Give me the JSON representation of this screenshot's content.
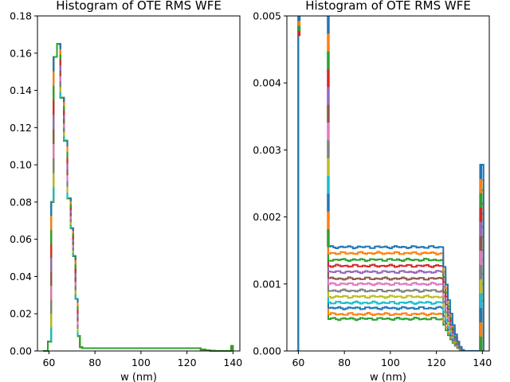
{
  "palette": [
    "#1f77b4",
    "#ff7f0e",
    "#2ca02c",
    "#d62728",
    "#9467bd",
    "#8c564b",
    "#e377c2",
    "#7f7f7f",
    "#bcbd22",
    "#17becf"
  ],
  "chart_data": [
    {
      "type": "histogram-step",
      "title": "Histogram of OTE RMS WFE",
      "xlabel": "w (nm)",
      "ylabel": "",
      "xlim": [
        55,
        143
      ],
      "ylim": [
        0,
        0.18
      ],
      "xticks": [
        "60",
        "80",
        "100",
        "120",
        "140"
      ],
      "yticks": [
        "0.00",
        "0.02",
        "0.04",
        "0.06",
        "0.08",
        "0.10",
        "0.12",
        "0.14",
        "0.16",
        "0.18"
      ],
      "xtick_values": [
        60,
        80,
        100,
        120,
        140
      ],
      "ytick_values": [
        0,
        0.02,
        0.04,
        0.06,
        0.08,
        0.1,
        0.12,
        0.14,
        0.16,
        0.18
      ],
      "grid": false,
      "legend": "none",
      "series_count": 13,
      "bin_width": 0.8,
      "bins": [
        [
          57.5,
          0
        ],
        [
          59.5,
          0.005
        ],
        [
          61.0,
          0.08
        ],
        [
          62.0,
          0.158
        ],
        [
          63.5,
          0.165
        ],
        [
          65.0,
          0.136
        ],
        [
          66.5,
          0.113
        ],
        [
          68.0,
          0.082
        ],
        [
          69.5,
          0.066
        ],
        [
          70.5,
          0.051
        ],
        [
          71.5,
          0.028
        ],
        [
          72.5,
          0.008
        ],
        [
          73.5,
          0.002
        ],
        [
          74.5,
          0.0015
        ],
        [
          124,
          0.0015
        ],
        [
          126,
          0.0008
        ],
        [
          128,
          0.0003
        ],
        [
          130,
          0.0001
        ],
        [
          132,
          0
        ],
        [
          139.2,
          0.0027
        ],
        [
          140.0,
          0
        ]
      ]
    },
    {
      "type": "histogram-step",
      "title": "Histogram of OTE RMS WFE",
      "xlabel": "w (nm)",
      "ylabel": "",
      "xlim": [
        55,
        143
      ],
      "ylim": [
        0,
        0.005
      ],
      "xticks": [
        "60",
        "80",
        "100",
        "120",
        "140"
      ],
      "yticks": [
        "0.000",
        "0.001",
        "0.002",
        "0.003",
        "0.004",
        "0.005"
      ],
      "xtick_values": [
        60,
        80,
        100,
        120,
        140
      ],
      "ytick_values": [
        0,
        0.001,
        0.002,
        0.003,
        0.004,
        0.005
      ],
      "grid": false,
      "legend": "none",
      "series": [
        {
          "plateau": 0.00155,
          "last_bin": 0.00278
        },
        {
          "plateau": 0.00146,
          "last_bin": 0.00255
        },
        {
          "plateau": 0.00136,
          "last_bin": 0.0024
        },
        {
          "plateau": 0.00127,
          "last_bin": 0.0022
        },
        {
          "plateau": 0.00118,
          "last_bin": 0.00205
        },
        {
          "plateau": 0.00108,
          "last_bin": 0.00185
        },
        {
          "plateau": 0.001,
          "last_bin": 0.0017
        },
        {
          "plateau": 0.0009,
          "last_bin": 0.0015
        },
        {
          "plateau": 0.00081,
          "last_bin": 0.00135
        },
        {
          "plateau": 0.00072,
          "last_bin": 0.00115
        },
        {
          "plateau": 0.00064,
          "last_bin": 0.001
        },
        {
          "plateau": 0.00055,
          "last_bin": 0.00085
        },
        {
          "plateau": 0.00048,
          "last_bin": 0.00075
        }
      ],
      "left_spike_x": [
        60.0,
        62.0
      ],
      "step_x": [
        73.0,
        74.5
      ],
      "falloff_x": [
        122.0,
        132.0
      ],
      "last_bin_x": [
        139.0,
        140.5
      ]
    }
  ]
}
